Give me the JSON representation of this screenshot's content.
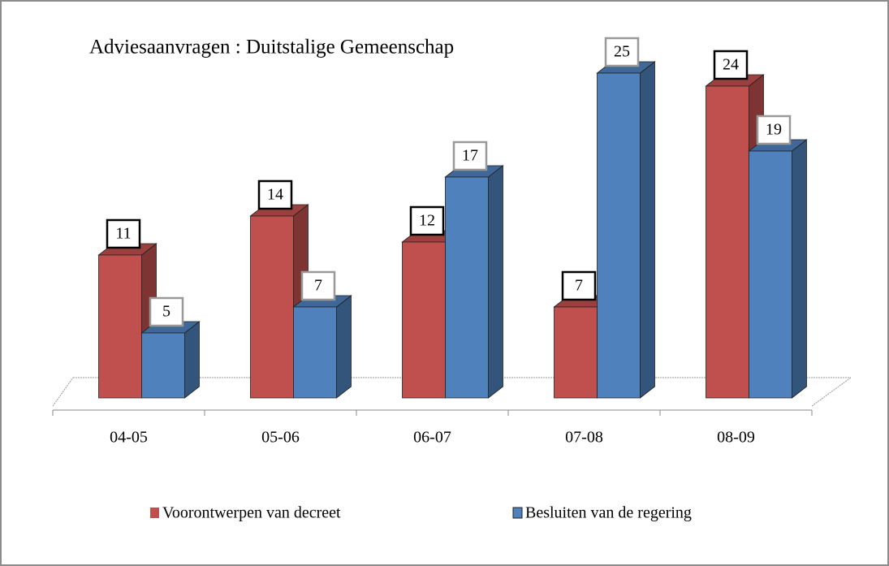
{
  "chart_data": {
    "type": "bar3d",
    "title": "Adviesaanvragen : Duitstalige Gemeenschap",
    "categories": [
      "04-05",
      "05-06",
      "06-07",
      "07-08",
      "08-09"
    ],
    "series": [
      {
        "name": "Voorontwerpen van decreet",
        "color": "#c0504d",
        "values": [
          11,
          14,
          12,
          7,
          24
        ]
      },
      {
        "name": "Besluiten van de regering",
        "color": "#4f81bd",
        "values": [
          5,
          7,
          17,
          25,
          19
        ]
      }
    ],
    "ylim": [
      0,
      25
    ]
  }
}
